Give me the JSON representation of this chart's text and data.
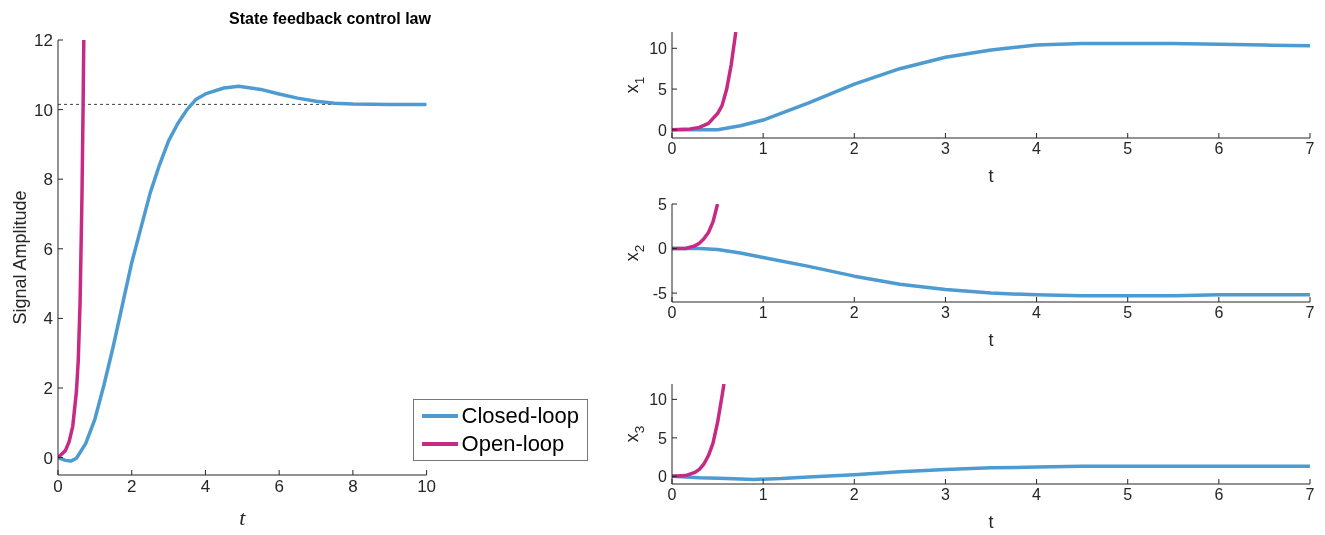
{
  "chart_data": [
    {
      "type": "line",
      "title": "State feedback control law",
      "xlabel": "t",
      "ylabel": "Signal Amplitude",
      "xlim": [
        0,
        10
      ],
      "xticks": [
        0,
        2,
        4,
        6,
        8,
        10
      ],
      "ylim": [
        -0.5,
        12
      ],
      "yticks": [
        0,
        2,
        4,
        6,
        8,
        10,
        12
      ],
      "legend": "bottom right",
      "grid": false,
      "line_style": "solid",
      "marker": "none",
      "ref_lines": [
        {
          "axis": "y",
          "value": 10.15,
          "label": null,
          "color": "#404040",
          "line_style": "dashed"
        }
      ],
      "series": [
        {
          "name": "Closed-loop",
          "color": "#4d9bd0",
          "x": [
            0,
            0.2,
            0.35,
            0.5,
            0.75,
            1,
            1.25,
            1.5,
            1.75,
            2,
            2.25,
            2.5,
            2.75,
            3,
            3.25,
            3.5,
            3.75,
            4,
            4.5,
            4.9,
            5.5,
            6,
            6.5,
            7,
            7.5,
            8,
            9,
            10
          ],
          "values": [
            0,
            -0.08,
            -0.1,
            -0.02,
            0.4,
            1.1,
            2.1,
            3.2,
            4.4,
            5.6,
            6.6,
            7.6,
            8.4,
            9.1,
            9.6,
            10.0,
            10.3,
            10.45,
            10.62,
            10.67,
            10.58,
            10.45,
            10.33,
            10.24,
            10.18,
            10.16,
            10.15,
            10.15
          ]
        },
        {
          "name": "Open-loop",
          "color": "#c72a84",
          "x": [
            0,
            0.2,
            0.3,
            0.4,
            0.5,
            0.55,
            0.6,
            0.65,
            0.68,
            0.7
          ],
          "values": [
            0,
            0.2,
            0.45,
            0.9,
            1.9,
            2.8,
            4.5,
            7.5,
            10,
            12
          ]
        }
      ]
    },
    {
      "type": "line",
      "xlabel": "t",
      "ylabel": "x$_{1}$",
      "xlim": [
        0,
        7
      ],
      "xticks": [
        0,
        1,
        2,
        3,
        4,
        5,
        6,
        7
      ],
      "ylim": [
        -1,
        12
      ],
      "yticks": [
        0,
        5,
        10
      ],
      "grid": false,
      "line_style": "solid",
      "marker": "none",
      "series": [
        {
          "color": "#4d9bd0",
          "x": [
            0,
            0.3,
            0.5,
            0.75,
            1,
            1.5,
            2,
            2.5,
            3,
            3.5,
            4,
            4.5,
            5,
            5.5,
            6,
            6.5,
            7
          ],
          "values": [
            0,
            0,
            0,
            0.5,
            1.2,
            3.3,
            5.6,
            7.5,
            8.9,
            9.8,
            10.4,
            10.6,
            10.6,
            10.6,
            10.5,
            10.4,
            10.3
          ]
        },
        {
          "color": "#c72a84",
          "x": [
            0,
            0.2,
            0.3,
            0.4,
            0.5,
            0.55,
            0.6,
            0.65,
            0.7
          ],
          "values": [
            0,
            0.1,
            0.3,
            0.8,
            2,
            3,
            5,
            8,
            12
          ]
        }
      ]
    },
    {
      "type": "line",
      "xlabel": "t",
      "ylabel": "x$_{2}$",
      "xlim": [
        0,
        7
      ],
      "xticks": [
        0,
        1,
        2,
        3,
        4,
        5,
        6,
        7
      ],
      "ylim": [
        -6,
        5
      ],
      "yticks": [
        -5,
        0,
        5
      ],
      "grid": false,
      "line_style": "solid",
      "marker": "none",
      "series": [
        {
          "color": "#4d9bd0",
          "x": [
            0,
            0.3,
            0.5,
            0.75,
            1,
            1.5,
            2,
            2.5,
            3,
            3.5,
            4,
            4.5,
            5,
            5.5,
            6,
            6.5,
            7
          ],
          "values": [
            0,
            0,
            -0.1,
            -0.5,
            -1,
            -2.0,
            -3.1,
            -4.0,
            -4.6,
            -5.0,
            -5.2,
            -5.3,
            -5.3,
            -5.3,
            -5.2,
            -5.2,
            -5.2
          ]
        },
        {
          "color": "#c72a84",
          "x": [
            0,
            0.15,
            0.25,
            0.3,
            0.35,
            0.4,
            0.45,
            0.5
          ],
          "values": [
            0,
            0,
            0.3,
            0.6,
            1.1,
            1.8,
            3,
            5
          ]
        }
      ]
    },
    {
      "type": "line",
      "xlabel": "t",
      "ylabel": "x$_{3}$",
      "xlim": [
        0,
        7
      ],
      "xticks": [
        0,
        1,
        2,
        3,
        4,
        5,
        6,
        7
      ],
      "ylim": [
        -1,
        12
      ],
      "yticks": [
        0,
        5,
        10
      ],
      "grid": false,
      "line_style": "solid",
      "marker": "none",
      "series": [
        {
          "color": "#4d9bd0",
          "x": [
            0,
            0.3,
            0.6,
            0.9,
            1.2,
            1.5,
            2,
            2.5,
            3,
            3.5,
            4,
            4.5,
            5,
            5.5,
            6,
            7
          ],
          "values": [
            0,
            -0.2,
            -0.3,
            -0.4,
            -0.3,
            -0.1,
            0.2,
            0.6,
            0.9,
            1.1,
            1.2,
            1.3,
            1.3,
            1.3,
            1.3,
            1.3
          ]
        },
        {
          "color": "#c72a84",
          "x": [
            0,
            0.15,
            0.25,
            0.3,
            0.35,
            0.4,
            0.45,
            0.5,
            0.55,
            0.57
          ],
          "values": [
            0,
            0.1,
            0.5,
            0.9,
            1.6,
            2.7,
            4.3,
            7,
            10.5,
            12
          ]
        }
      ]
    }
  ]
}
